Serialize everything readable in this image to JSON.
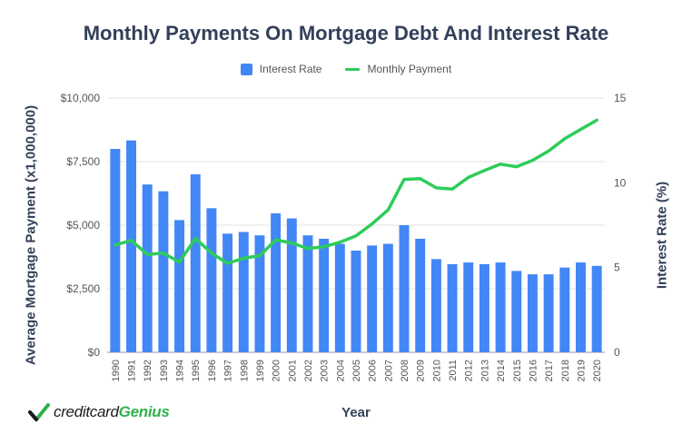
{
  "chart_data": {
    "type": "bar+line",
    "title": "Monthly Payments On Mortgage Debt And Interest Rate",
    "xlabel": "Year",
    "ylabel_left": "Average Mortgage Payment (x1,000,000)",
    "ylabel_right": "Interest Rate (%)",
    "categories": [
      "1990",
      "1991",
      "1992",
      "1993",
      "1994",
      "1995",
      "1996",
      "1997",
      "1998",
      "1999",
      "2000",
      "2001",
      "2002",
      "2003",
      "2004",
      "2005",
      "2006",
      "2007",
      "2008",
      "2009",
      "2010",
      "2011",
      "2012",
      "2013",
      "2014",
      "2015",
      "2016",
      "2017",
      "2018",
      "2019",
      "2020"
    ],
    "y_left": {
      "ticks": [
        "$0",
        "$2,500",
        "$5,000",
        "$7,500",
        "$10,000"
      ],
      "range": [
        0,
        10000
      ]
    },
    "y_right": {
      "ticks": [
        "0",
        "5",
        "10",
        "15"
      ],
      "range": [
        0,
        15
      ]
    },
    "grid": true,
    "legend_position": "top-center",
    "series": [
      {
        "name": "Interest Rate",
        "type": "bar",
        "axis": "right",
        "color": "#4287f5",
        "values": [
          12.0,
          12.5,
          9.9,
          9.5,
          7.8,
          10.5,
          8.5,
          7.0,
          7.1,
          6.9,
          8.2,
          7.9,
          6.9,
          6.7,
          6.4,
          6.0,
          6.3,
          6.4,
          7.5,
          6.7,
          5.5,
          5.2,
          5.3,
          5.2,
          5.3,
          4.8,
          4.6,
          4.6,
          5.0,
          5.3,
          5.1
        ]
      },
      {
        "name": "Monthly Payment",
        "type": "line",
        "axis": "left",
        "color": "#2ecc5a",
        "values": [
          4220,
          4400,
          3850,
          3900,
          3550,
          4480,
          3900,
          3500,
          3700,
          3800,
          4420,
          4300,
          4080,
          4150,
          4330,
          4580,
          5050,
          5600,
          6800,
          6830,
          6470,
          6420,
          6880,
          7150,
          7400,
          7300,
          7550,
          7920,
          8400,
          8770,
          9130
        ]
      }
    ]
  },
  "logo": {
    "text_prefix": "creditcard",
    "text_brand": "Genius"
  }
}
